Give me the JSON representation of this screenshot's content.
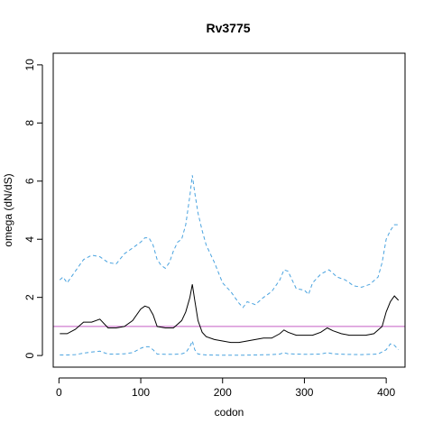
{
  "chart_data": {
    "type": "line",
    "title": "Rv3775",
    "xlabel": "codon",
    "ylabel": "omega (dN/dS)",
    "xlim": [
      -7,
      423
    ],
    "ylim": [
      -0.4,
      10.4
    ],
    "x_ticks": [
      0,
      100,
      200,
      300,
      400
    ],
    "x_tick_labels": [
      "0",
      "100",
      "200",
      "300",
      "400"
    ],
    "y_ticks": [
      0,
      2,
      4,
      6,
      8,
      10
    ],
    "y_tick_labels": [
      "0",
      "2",
      "4",
      "6",
      "8",
      "10"
    ],
    "reference_line": {
      "y": 1,
      "color": "#c45dc4"
    },
    "grid": false,
    "series": [
      {
        "color": "#000000",
        "style": "solid",
        "x": [
          1,
          10,
          20,
          30,
          40,
          50,
          60,
          70,
          80,
          90,
          100,
          105,
          110,
          115,
          120,
          130,
          140,
          150,
          155,
          160,
          163,
          166,
          170,
          175,
          180,
          190,
          200,
          210,
          220,
          230,
          240,
          250,
          260,
          270,
          275,
          280,
          290,
          300,
          310,
          320,
          328,
          335,
          345,
          355,
          365,
          375,
          385,
          395,
          400,
          405,
          410,
          415
        ],
        "y": [
          0.75,
          0.75,
          0.9,
          1.15,
          1.15,
          1.25,
          0.95,
          0.95,
          1.0,
          1.2,
          1.6,
          1.7,
          1.65,
          1.4,
          1.0,
          0.95,
          0.95,
          1.2,
          1.5,
          2.0,
          2.45,
          1.9,
          1.2,
          0.8,
          0.65,
          0.55,
          0.5,
          0.45,
          0.45,
          0.5,
          0.55,
          0.6,
          0.6,
          0.75,
          0.88,
          0.8,
          0.7,
          0.7,
          0.7,
          0.8,
          0.95,
          0.85,
          0.75,
          0.7,
          0.7,
          0.7,
          0.75,
          1.0,
          1.5,
          1.85,
          2.05,
          1.9
        ]
      },
      {
        "color": "#4aa3df",
        "style": "dashed",
        "x": [
          1,
          5,
          10,
          15,
          20,
          25,
          30,
          40,
          50,
          60,
          70,
          80,
          90,
          100,
          105,
          110,
          115,
          120,
          125,
          130,
          135,
          140,
          145,
          150,
          155,
          160,
          163,
          166,
          170,
          175,
          180,
          190,
          200,
          210,
          220,
          225,
          230,
          240,
          250,
          260,
          270,
          275,
          280,
          285,
          290,
          300,
          305,
          310,
          320,
          330,
          340,
          350,
          360,
          370,
          380,
          390,
          395,
          400,
          405,
          410,
          415
        ],
        "y": [
          2.6,
          2.7,
          2.5,
          2.7,
          2.9,
          3.1,
          3.3,
          3.45,
          3.4,
          3.2,
          3.15,
          3.5,
          3.7,
          3.9,
          4.05,
          4.05,
          3.8,
          3.3,
          3.1,
          3.0,
          3.2,
          3.6,
          3.9,
          4.0,
          4.5,
          5.5,
          6.2,
          5.6,
          4.9,
          4.3,
          3.8,
          3.2,
          2.5,
          2.2,
          1.8,
          1.65,
          1.85,
          1.75,
          2.0,
          2.2,
          2.6,
          2.95,
          2.9,
          2.6,
          2.3,
          2.25,
          2.1,
          2.5,
          2.8,
          2.95,
          2.7,
          2.6,
          2.4,
          2.35,
          2.45,
          2.7,
          3.2,
          4.0,
          4.3,
          4.5,
          4.5
        ]
      },
      {
        "color": "#4aa3df",
        "style": "dashed",
        "x": [
          1,
          10,
          20,
          30,
          40,
          50,
          60,
          70,
          80,
          90,
          100,
          105,
          110,
          115,
          120,
          130,
          140,
          150,
          155,
          160,
          163,
          166,
          170,
          180,
          200,
          220,
          240,
          260,
          270,
          275,
          280,
          300,
          320,
          328,
          335,
          350,
          370,
          390,
          400,
          405,
          410,
          415
        ],
        "y": [
          0.02,
          0.02,
          0.03,
          0.08,
          0.12,
          0.15,
          0.05,
          0.05,
          0.06,
          0.1,
          0.25,
          0.3,
          0.3,
          0.2,
          0.05,
          0.04,
          0.04,
          0.06,
          0.1,
          0.3,
          0.5,
          0.2,
          0.05,
          0.02,
          0.01,
          0.01,
          0.02,
          0.03,
          0.05,
          0.1,
          0.06,
          0.04,
          0.05,
          0.1,
          0.06,
          0.04,
          0.03,
          0.05,
          0.2,
          0.4,
          0.35,
          0.2
        ]
      }
    ]
  }
}
